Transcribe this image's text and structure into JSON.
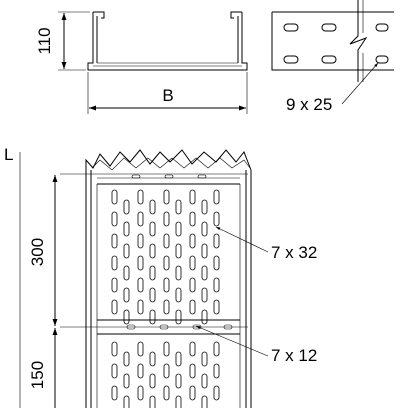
{
  "dimensions": {
    "height": "110",
    "width": "B",
    "length": "L",
    "section_300": "300",
    "section_150": "150"
  },
  "callouts": {
    "slot_side": "9 x 25",
    "slot_base_large": "7 x 32",
    "slot_base_small": "7 x 12"
  }
}
